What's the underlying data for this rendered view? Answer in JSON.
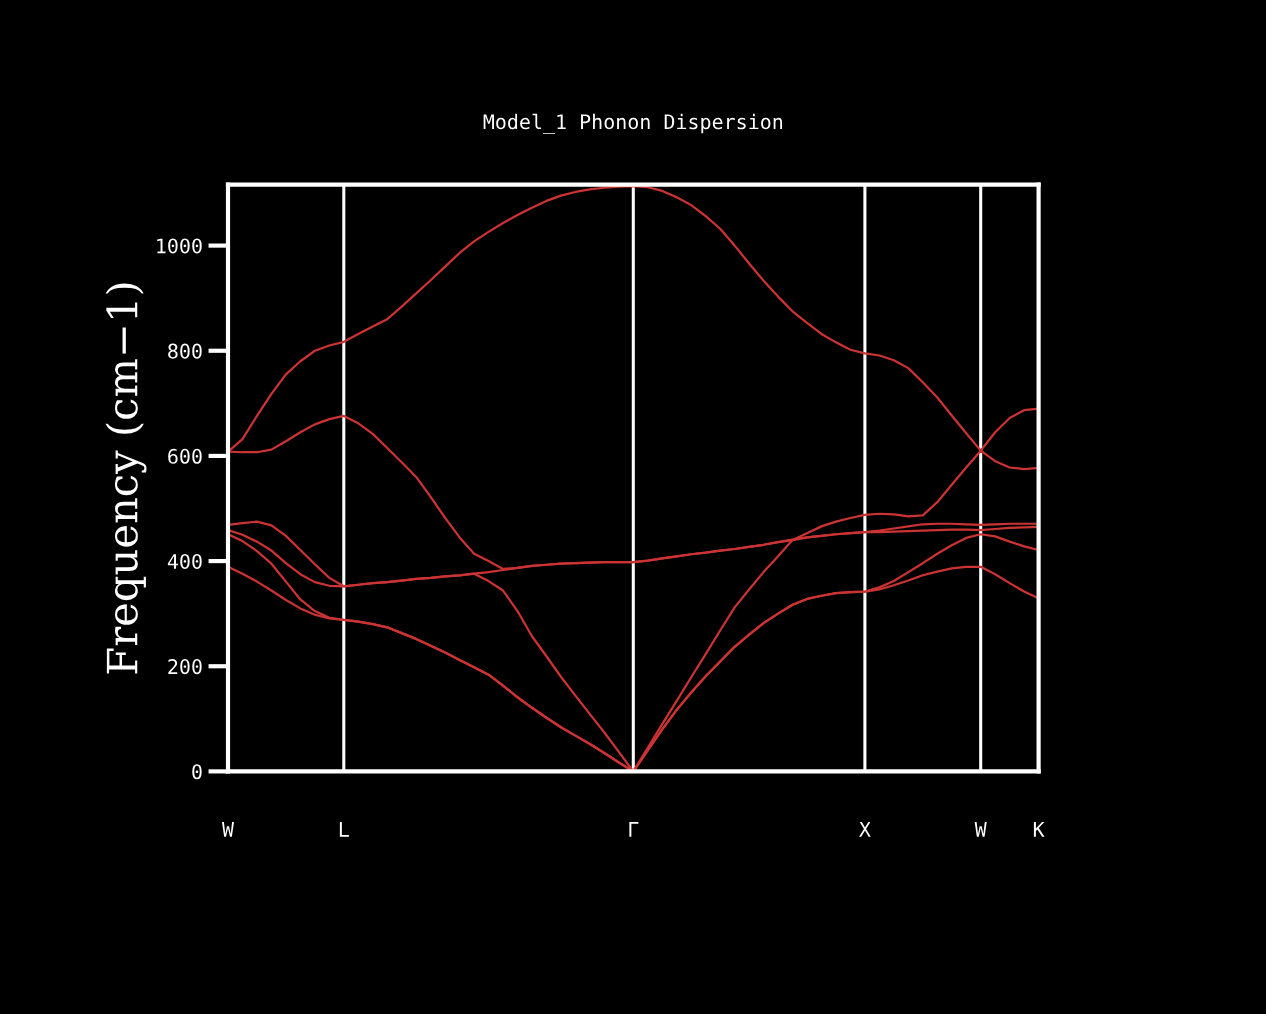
{
  "chart_data": {
    "type": "line",
    "title": "Model_1 Phonon Dispersion",
    "ylabel": "Frequency (cm−1)",
    "categories": [
      "W",
      null,
      null,
      null,
      null,
      null,
      null,
      null,
      "L",
      null,
      null,
      null,
      null,
      null,
      null,
      null,
      null,
      null,
      null,
      null,
      null,
      null,
      null,
      null,
      null,
      null,
      null,
      null,
      "Γ",
      null,
      null,
      null,
      null,
      null,
      null,
      null,
      null,
      null,
      null,
      null,
      null,
      null,
      null,
      null,
      "X",
      null,
      null,
      null,
      null,
      null,
      null,
      null,
      "W",
      null,
      null,
      null,
      "K"
    ],
    "ylim": [
      0,
      1116
    ],
    "yticks": [
      0,
      200,
      400,
      600,
      800,
      1000
    ],
    "grid": "x",
    "legend": false,
    "marker": "none",
    "line_style": "solid",
    "series": [
      {
        "color": "#cc3333",
        "values": [
          608,
          632,
          676,
          718,
          755,
          780,
          800,
          810,
          817,
          832,
          846,
          860,
          884,
          909,
          934,
          960,
          986,
          1008,
          1026,
          1043,
          1058,
          1072,
          1085,
          1095,
          1102,
          1107,
          1110,
          1112,
          1113,
          1111,
          1104,
          1092,
          1077,
          1056,
          1032,
          1000,
          966,
          933,
          903,
          875,
          853,
          832,
          816,
          802,
          795,
          791,
          782,
          767,
          740,
          711,
          677,
          643,
          610,
          645,
          672,
          687,
          690
        ]
      },
      {
        "color": "#cc3333",
        "values": [
          608,
          607,
          607,
          612,
          628,
          645,
          660,
          670,
          676,
          662,
          642,
          615,
          588,
          560,
          522,
          482,
          445,
          414,
          400,
          385,
          387,
          391,
          393,
          395,
          396,
          397,
          398,
          398,
          398,
          401,
          405,
          409,
          413,
          416,
          420,
          423,
          427,
          431,
          436,
          440,
          453,
          466,
          475,
          482,
          488,
          490,
          489,
          485,
          487,
          512,
          545,
          578,
          610,
          590,
          578,
          575,
          577
        ]
      },
      {
        "color": "#cc3333",
        "values": [
          469,
          472,
          475,
          468,
          448,
          421,
          394,
          368,
          352,
          355,
          358,
          360,
          363,
          366,
          368,
          371,
          373,
          376,
          379,
          383,
          387,
          391,
          393,
          395,
          396,
          397,
          398,
          398,
          398,
          401,
          405,
          409,
          413,
          416,
          420,
          423,
          427,
          431,
          436,
          441,
          445,
          448,
          451,
          453,
          455,
          458,
          462,
          466,
          470,
          471,
          471,
          470,
          469,
          470,
          471,
          471,
          471
        ]
      },
      {
        "color": "#cc3333",
        "values": [
          459,
          450,
          437,
          420,
          396,
          375,
          360,
          353,
          352,
          355,
          358,
          360,
          363,
          366,
          368,
          371,
          373,
          376,
          362,
          344,
          305,
          257,
          219,
          180,
          144,
          109,
          74,
          37,
          0,
          45,
          90,
          134,
          179,
          223,
          268,
          312,
          346,
          379,
          409,
          440,
          445,
          448,
          451,
          453,
          455,
          455,
          456,
          457,
          458,
          459,
          460,
          460,
          459,
          461,
          463,
          464,
          465
        ]
      },
      {
        "color": "#cc3333",
        "values": [
          451,
          438,
          419,
          395,
          361,
          327,
          305,
          292,
          288,
          285,
          280,
          274,
          263,
          252,
          239,
          226,
          212,
          198,
          184,
          163,
          141,
          121,
          102,
          84,
          68,
          52,
          35,
          17,
          0,
          40,
          80,
          117,
          150,
          181,
          209,
          237,
          260,
          282,
          300,
          317,
          328,
          334,
          339,
          341,
          342,
          350,
          362,
          379,
          396,
          414,
          430,
          444,
          451,
          447,
          437,
          428,
          421
        ]
      },
      {
        "color": "#cc3333",
        "values": [
          389,
          376,
          361,
          344,
          326,
          310,
          298,
          291,
          288,
          285,
          280,
          274,
          263,
          252,
          239,
          226,
          212,
          198,
          184,
          163,
          141,
          121,
          102,
          84,
          68,
          52,
          35,
          17,
          0,
          40,
          80,
          117,
          150,
          181,
          209,
          237,
          260,
          282,
          300,
          317,
          328,
          334,
          339,
          341,
          342,
          346,
          354,
          363,
          373,
          380,
          386,
          389,
          389,
          375,
          358,
          342,
          329
        ]
      }
    ]
  }
}
